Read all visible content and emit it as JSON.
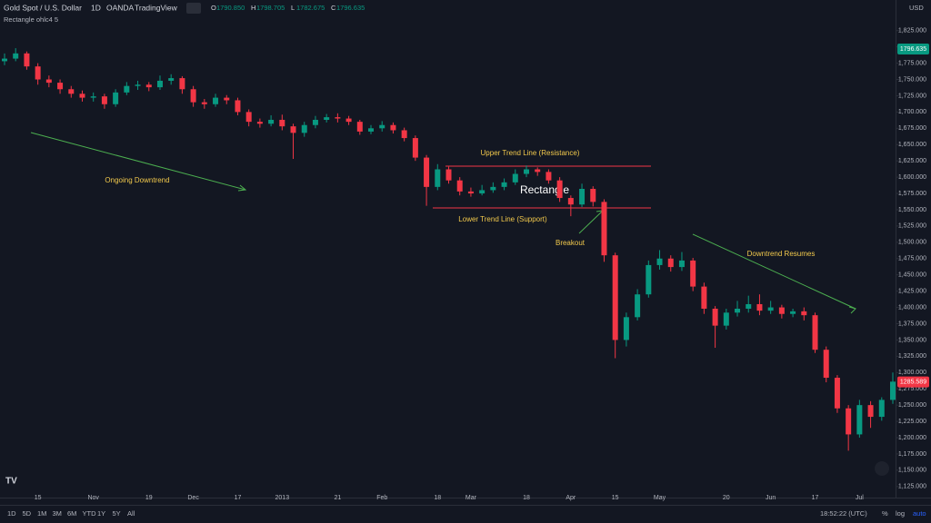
{
  "header": {
    "symbol": "Gold Spot / U.S. Dollar",
    "interval": "1D",
    "broker": "OANDA",
    "platform": "TradingView",
    "ohlc_letters": [
      "O",
      "H",
      "L",
      "C"
    ],
    "ohlc_values": [
      "1790.850",
      "1798.705",
      "1782.675",
      "1796.635"
    ],
    "indicator": "Rectangle ohlc4 5",
    "currency": "USD"
  },
  "toolbar": {
    "ranges": [
      "1D",
      "5D",
      "1M",
      "3M",
      "6M",
      "YTD",
      "1Y",
      "5Y",
      "All"
    ],
    "clock": "18:52:22 (UTC)",
    "percent": "%",
    "log": "log",
    "auto": "auto"
  },
  "annotations": [
    "Ongoing Downtrend",
    "Upper Trend Line (Resistance)",
    "Rectangle",
    "Lower Trend Line (Support)",
    "Breakout",
    "Downtrend Resumes"
  ],
  "chart_data": {
    "type": "candlestick",
    "up_color": "#089981",
    "down_color": "#f23645",
    "ylim": [
      1108,
      1872
    ],
    "yticks": [
      {
        "value": 1125,
        "label": "1,125.000"
      },
      {
        "value": 1150,
        "label": "1,150.000"
      },
      {
        "value": 1175,
        "label": "1,175.000"
      },
      {
        "value": 1200,
        "label": "1,200.000"
      },
      {
        "value": 1225,
        "label": "1,225.000"
      },
      {
        "value": 1250,
        "label": "1,250.000"
      },
      {
        "value": 1275,
        "label": "1,275.000"
      },
      {
        "value": 1300,
        "label": "1,300.000"
      },
      {
        "value": 1325,
        "label": "1,325.000"
      },
      {
        "value": 1350,
        "label": "1,350.000"
      },
      {
        "value": 1375,
        "label": "1,375.000"
      },
      {
        "value": 1400,
        "label": "1,400.000"
      },
      {
        "value": 1425,
        "label": "1,425.000"
      },
      {
        "value": 1450,
        "label": "1,450.000"
      },
      {
        "value": 1475,
        "label": "1,475.000"
      },
      {
        "value": 1500,
        "label": "1,500.000"
      },
      {
        "value": 1525,
        "label": "1,525.000"
      },
      {
        "value": 1550,
        "label": "1,550.000"
      },
      {
        "value": 1575,
        "label": "1,575.000"
      },
      {
        "value": 1600,
        "label": "1,600.000"
      },
      {
        "value": 1625,
        "label": "1,625.000"
      },
      {
        "value": 1650,
        "label": "1,650.000"
      },
      {
        "value": 1675,
        "label": "1,675.000"
      },
      {
        "value": 1700,
        "label": "1,700.000"
      },
      {
        "value": 1725,
        "label": "1,725.000"
      },
      {
        "value": 1750,
        "label": "1,750.000"
      },
      {
        "value": 1775,
        "label": "1,775.000"
      },
      {
        "value": 1800,
        "label": "1,800.000"
      },
      {
        "value": 1825,
        "label": "1,825.000"
      }
    ],
    "price_badges": [
      {
        "value": 1796.635,
        "color": "#089981"
      },
      {
        "value": 1285.589,
        "color": "#f23645"
      }
    ],
    "categories": [
      null,
      null,
      null,
      "15",
      null,
      null,
      null,
      null,
      "Nov",
      null,
      null,
      null,
      null,
      "19",
      null,
      null,
      null,
      "Dec",
      null,
      null,
      null,
      "17",
      null,
      null,
      null,
      "2013",
      null,
      null,
      null,
      null,
      "21",
      null,
      null,
      null,
      "Feb",
      null,
      null,
      null,
      null,
      "18",
      null,
      null,
      "Mar",
      null,
      null,
      null,
      null,
      "18",
      null,
      null,
      null,
      "Apr",
      null,
      null,
      null,
      "15",
      null,
      null,
      null,
      "May",
      null,
      null,
      null,
      null,
      null,
      "20",
      null,
      null,
      null,
      "Jun",
      null,
      null,
      null,
      "17",
      null,
      null,
      null,
      "Jul",
      null,
      null,
      null
    ],
    "candles": [
      [
        1778,
        1790,
        1772,
        1782
      ],
      [
        1782,
        1798,
        1778,
        1790
      ],
      [
        1790,
        1793,
        1765,
        1770
      ],
      [
        1770,
        1775,
        1742,
        1750
      ],
      [
        1750,
        1756,
        1738,
        1745
      ],
      [
        1745,
        1750,
        1728,
        1735
      ],
      [
        1735,
        1740,
        1722,
        1728
      ],
      [
        1728,
        1733,
        1716,
        1722
      ],
      [
        1722,
        1730,
        1716,
        1724
      ],
      [
        1724,
        1728,
        1705,
        1712
      ],
      [
        1712,
        1735,
        1708,
        1730
      ],
      [
        1730,
        1746,
        1726,
        1740
      ],
      [
        1740,
        1748,
        1734,
        1742
      ],
      [
        1742,
        1746,
        1732,
        1738
      ],
      [
        1738,
        1756,
        1734,
        1748
      ],
      [
        1748,
        1758,
        1742,
        1752
      ],
      [
        1752,
        1755,
        1728,
        1735
      ],
      [
        1735,
        1740,
        1708,
        1715
      ],
      [
        1715,
        1720,
        1705,
        1712
      ],
      [
        1712,
        1728,
        1708,
        1722
      ],
      [
        1722,
        1726,
        1712,
        1718
      ],
      [
        1718,
        1722,
        1695,
        1700
      ],
      [
        1700,
        1704,
        1678,
        1685
      ],
      [
        1685,
        1690,
        1676,
        1682
      ],
      [
        1682,
        1695,
        1678,
        1688
      ],
      [
        1688,
        1696,
        1672,
        1678
      ],
      [
        1678,
        1682,
        1628,
        1668
      ],
      [
        1668,
        1685,
        1662,
        1680
      ],
      [
        1680,
        1694,
        1675,
        1688
      ],
      [
        1688,
        1697,
        1684,
        1692
      ],
      [
        1692,
        1698,
        1684,
        1690
      ],
      [
        1690,
        1694,
        1680,
        1685
      ],
      [
        1685,
        1688,
        1665,
        1670
      ],
      [
        1670,
        1680,
        1666,
        1675
      ],
      [
        1675,
        1686,
        1670,
        1680
      ],
      [
        1680,
        1684,
        1667,
        1672
      ],
      [
        1672,
        1676,
        1655,
        1660
      ],
      [
        1660,
        1664,
        1625,
        1630
      ],
      [
        1630,
        1634,
        1556,
        1585
      ],
      [
        1585,
        1620,
        1580,
        1612
      ],
      [
        1612,
        1616,
        1590,
        1595
      ],
      [
        1595,
        1600,
        1572,
        1578
      ],
      [
        1578,
        1584,
        1570,
        1575
      ],
      [
        1575,
        1588,
        1572,
        1580
      ],
      [
        1580,
        1592,
        1576,
        1585
      ],
      [
        1585,
        1598,
        1580,
        1592
      ],
      [
        1592,
        1612,
        1588,
        1605
      ],
      [
        1605,
        1618,
        1600,
        1612
      ],
      [
        1612,
        1615,
        1602,
        1608
      ],
      [
        1608,
        1612,
        1590,
        1595
      ],
      [
        1595,
        1600,
        1562,
        1568
      ],
      [
        1568,
        1572,
        1540,
        1558
      ],
      [
        1558,
        1590,
        1554,
        1582
      ],
      [
        1582,
        1586,
        1555,
        1562
      ],
      [
        1562,
        1566,
        1470,
        1480
      ],
      [
        1480,
        1484,
        1322,
        1350
      ],
      [
        1350,
        1392,
        1340,
        1385
      ],
      [
        1385,
        1428,
        1380,
        1420
      ],
      [
        1420,
        1472,
        1415,
        1465
      ],
      [
        1465,
        1488,
        1458,
        1475
      ],
      [
        1475,
        1480,
        1455,
        1462
      ],
      [
        1462,
        1485,
        1456,
        1472
      ],
      [
        1472,
        1476,
        1425,
        1432
      ],
      [
        1432,
        1438,
        1390,
        1398
      ],
      [
        1398,
        1402,
        1338,
        1372
      ],
      [
        1372,
        1398,
        1366,
        1392
      ],
      [
        1392,
        1410,
        1386,
        1398
      ],
      [
        1398,
        1418,
        1392,
        1405
      ],
      [
        1405,
        1420,
        1388,
        1395
      ],
      [
        1395,
        1410,
        1390,
        1400
      ],
      [
        1400,
        1404,
        1383,
        1390
      ],
      [
        1390,
        1398,
        1385,
        1394
      ],
      [
        1394,
        1400,
        1380,
        1388
      ],
      [
        1388,
        1392,
        1330,
        1335
      ],
      [
        1335,
        1340,
        1285,
        1292
      ],
      [
        1292,
        1296,
        1238,
        1245
      ],
      [
        1245,
        1250,
        1180,
        1205
      ],
      [
        1205,
        1258,
        1200,
        1250
      ],
      [
        1250,
        1256,
        1215,
        1232
      ],
      [
        1232,
        1262,
        1226,
        1258
      ],
      [
        1258,
        1300,
        1252,
        1286
      ]
    ]
  }
}
